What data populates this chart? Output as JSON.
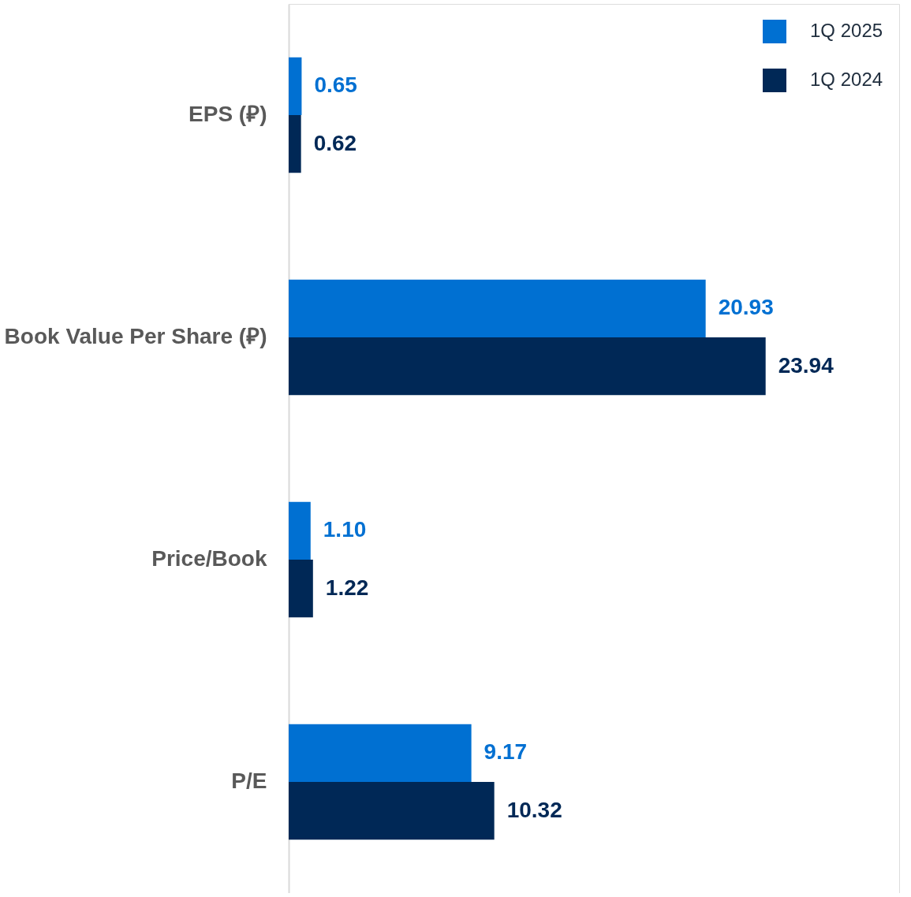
{
  "chart_data": {
    "type": "bar",
    "orientation": "horizontal",
    "categories": [
      "EPS (⃁)",
      "Book Value Per Share (⃁)",
      "Price/Book",
      "P/E"
    ],
    "series": [
      {
        "name": "1Q 2025",
        "color": "#0070d2",
        "values": [
          0.65,
          20.93,
          1.1,
          9.17
        ],
        "value_labels": [
          "0.65",
          "20.93",
          "1.10",
          "9.17"
        ]
      },
      {
        "name": "1Q 2024",
        "color": "#002856",
        "values": [
          0.62,
          23.94,
          1.22,
          10.32
        ],
        "value_labels": [
          "0.62",
          "23.94",
          "1.22",
          "10.32"
        ]
      }
    ],
    "legend": "top right",
    "grid": false,
    "tick_labels": "y"
  }
}
